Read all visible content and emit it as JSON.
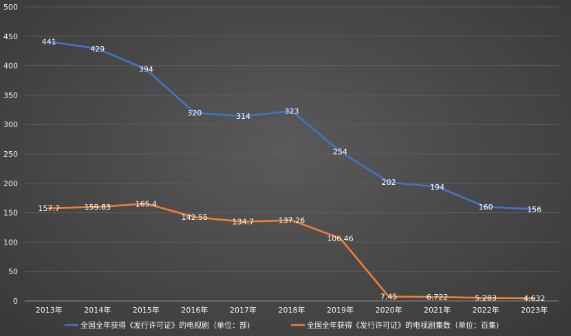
{
  "chart_data": {
    "type": "line",
    "title": "",
    "xlabel": "",
    "ylabel": "",
    "ylim": [
      0,
      500
    ],
    "yticks": [
      0,
      50,
      100,
      150,
      200,
      250,
      300,
      350,
      400,
      450,
      500
    ],
    "grid": true,
    "legend_position": "bottom",
    "categories": [
      "2013年",
      "2014年",
      "2015年",
      "2016年",
      "2017年",
      "2018年",
      "2019年",
      "2020年",
      "2021年",
      "2022年",
      "2023年"
    ],
    "series": [
      {
        "name": "全国全年获得《发行许可证》的电视剧（单位：部)",
        "color": "#4472c4",
        "values": [
          441,
          429,
          394,
          320,
          314,
          323,
          254,
          202,
          194,
          160,
          156
        ],
        "labels": [
          "441",
          "429",
          "394",
          "320",
          "314",
          "323",
          "254",
          "202",
          "194",
          "160",
          "156"
        ]
      },
      {
        "name": "全国全年获得《发行许可证》的电视剧集数（单位：百集)",
        "color": "#ed7d31",
        "values": [
          157.7,
          159.83,
          165.4,
          142.55,
          134.7,
          137.26,
          106.46,
          7.45,
          6.722,
          5.283,
          4.632
        ],
        "labels": [
          "157.7",
          "159.83",
          "165.4",
          "142.55",
          "134.7",
          "137.26",
          "106.46",
          "7.45",
          "6.722",
          "5.283",
          "4.632"
        ]
      }
    ]
  }
}
